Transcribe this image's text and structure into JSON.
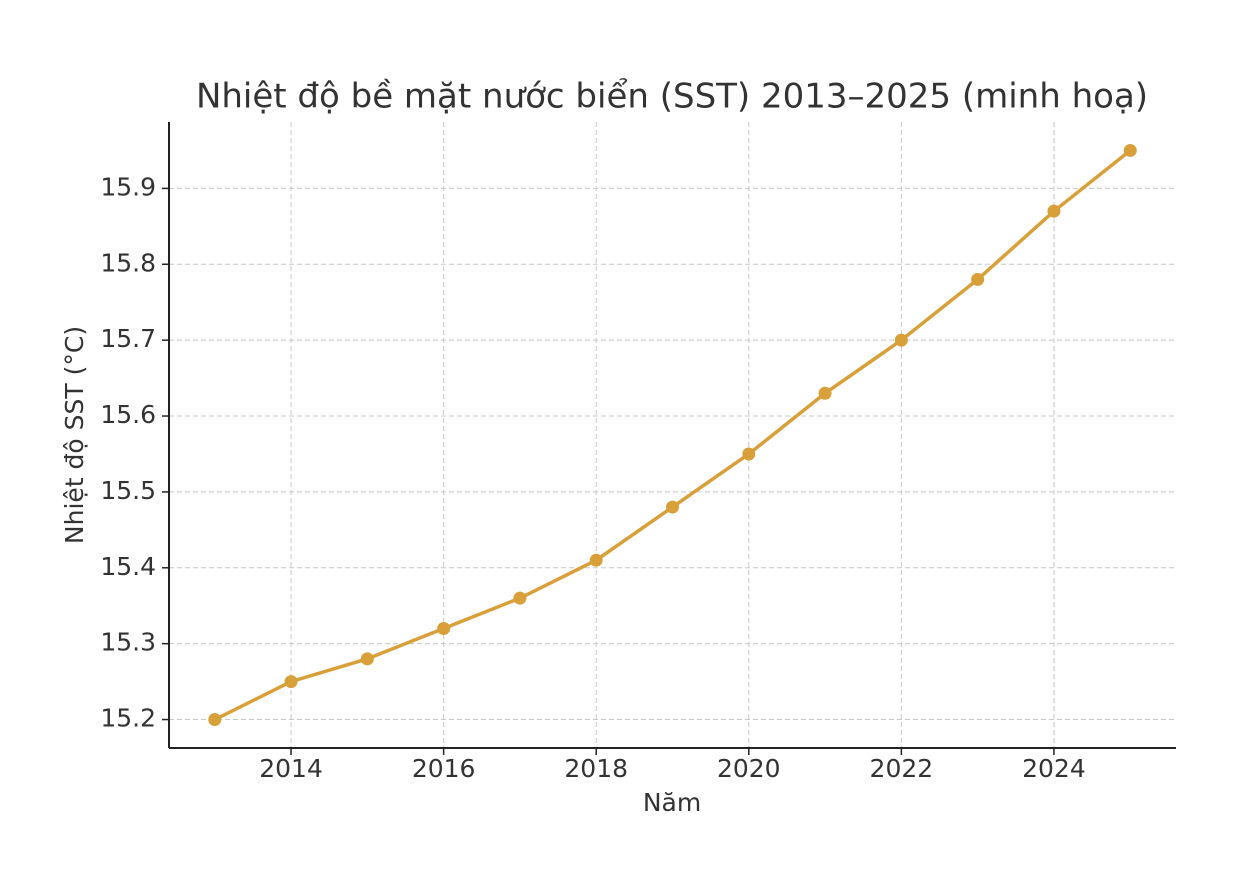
{
  "chart_data": {
    "type": "line",
    "title": "Nhiệt độ bề mặt nước biển (SST) 2013–2025 (minh hoạ)",
    "x_label": "Năm",
    "y_label": "Nhiệt độ SST (°C)",
    "x": [
      2013,
      2014,
      2015,
      2016,
      2017,
      2018,
      2019,
      2020,
      2021,
      2022,
      2023,
      2024,
      2025
    ],
    "series": [
      {
        "name": "SST",
        "color": "#d9a03a",
        "values": [
          15.2,
          15.25,
          15.28,
          15.32,
          15.36,
          15.41,
          15.48,
          15.55,
          15.63,
          15.7,
          15.78,
          15.87,
          15.95
        ]
      }
    ],
    "xlim": [
      2012.4,
      2025.6
    ],
    "xticks": [
      2014,
      2016,
      2018,
      2020,
      2022,
      2024
    ],
    "ylim": [
      15.1625,
      15.9875
    ],
    "yticks": [
      15.2,
      15.3,
      15.4,
      15.5,
      15.6,
      15.7,
      15.8,
      15.9
    ],
    "grid": true
  }
}
